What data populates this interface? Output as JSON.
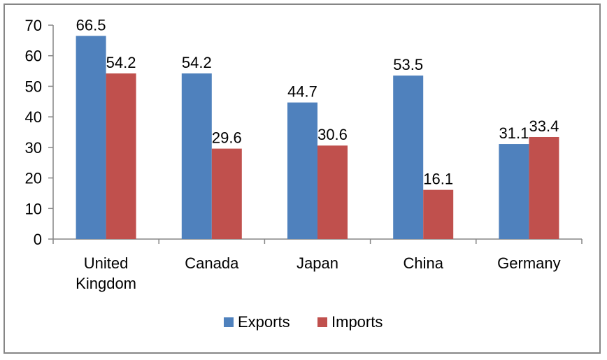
{
  "chart_data": {
    "type": "bar",
    "title": "",
    "xlabel": "",
    "ylabel": "",
    "ylim": [
      0,
      70
    ],
    "yticks": [
      0,
      10,
      20,
      30,
      40,
      50,
      60,
      70
    ],
    "grid": false,
    "legend": "bottom",
    "categories": [
      [
        "United",
        "Kingdom"
      ],
      [
        "Canada"
      ],
      [
        "Japan"
      ],
      [
        "China"
      ],
      [
        "Germany"
      ]
    ],
    "series": [
      {
        "name": "Exports",
        "color": "#4F81BD",
        "values": [
          66.5,
          54.2,
          44.7,
          53.5,
          31.1
        ]
      },
      {
        "name": "Imports",
        "color": "#C0504D",
        "values": [
          54.2,
          29.6,
          30.6,
          16.1,
          33.4
        ]
      }
    ]
  }
}
